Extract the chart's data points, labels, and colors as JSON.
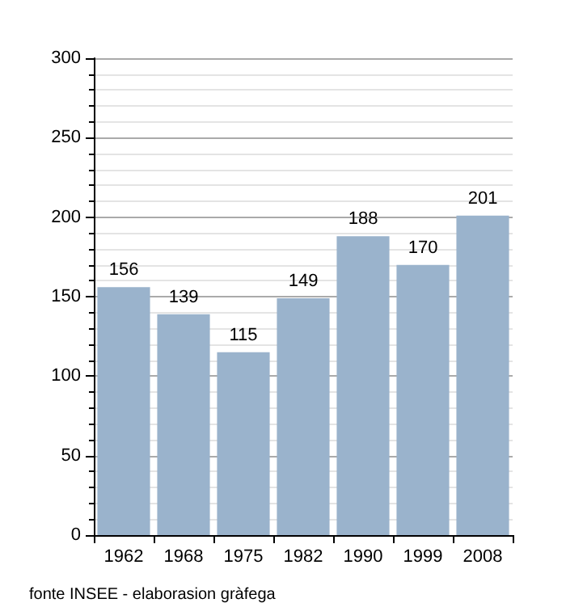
{
  "chart_data": {
    "type": "bar",
    "categories": [
      "1962",
      "1968",
      "1975",
      "1982",
      "1990",
      "1999",
      "2008"
    ],
    "values": [
      156,
      139,
      115,
      149,
      188,
      170,
      201
    ],
    "color": "#9ab3cc",
    "ylim": [
      0,
      300
    ],
    "yticks": [
      0,
      50,
      100,
      150,
      200,
      250,
      300
    ],
    "grid": "y",
    "data_labels": true,
    "annotations": [
      "fonte INSEE - elaborasion gràfega"
    ]
  }
}
